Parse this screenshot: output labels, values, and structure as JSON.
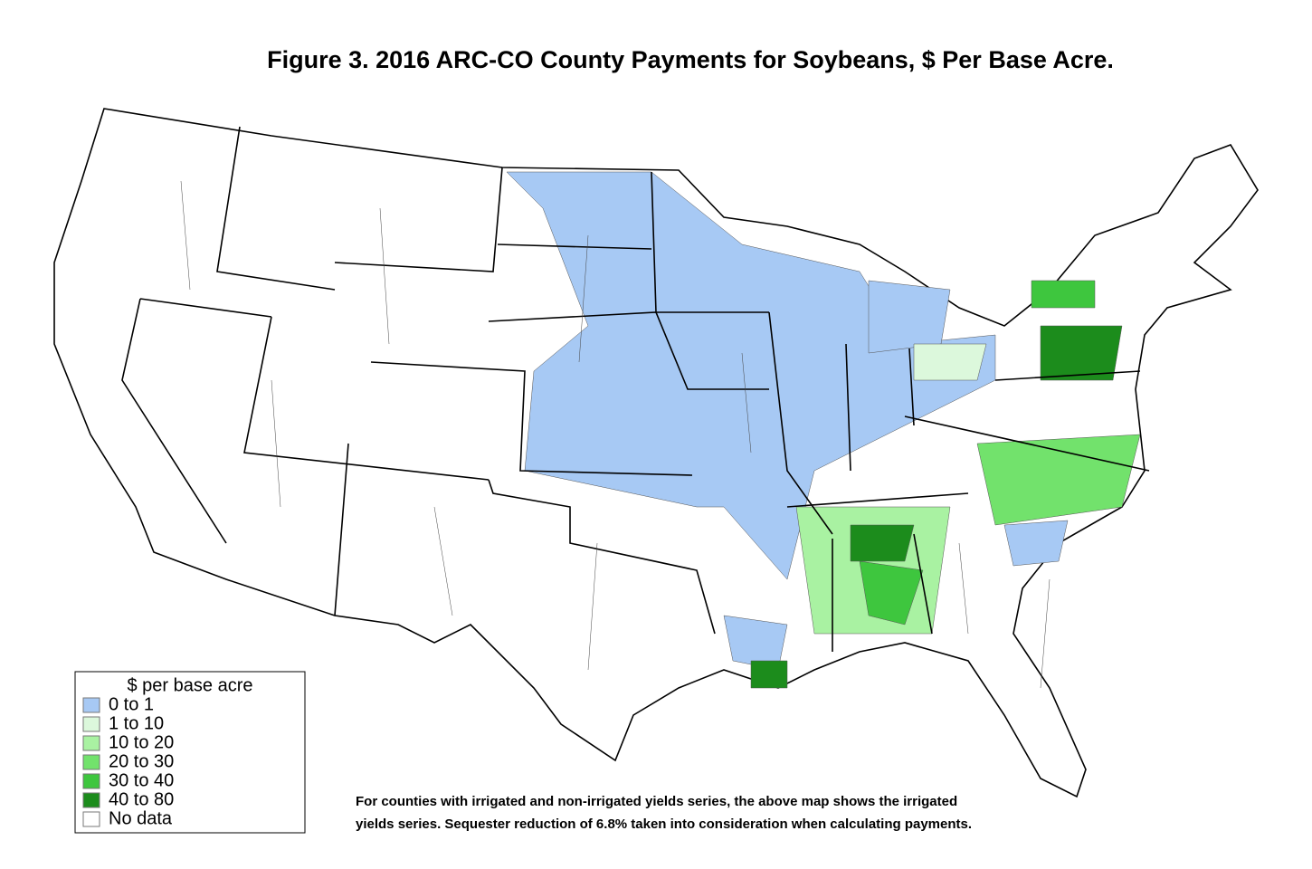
{
  "title": "Figure 3. 2016 ARC-CO County Payments for Soybeans, $ Per Base Acre.",
  "legend": {
    "title": "$ per base acre",
    "items": [
      {
        "label": "0 to 1",
        "color": "#a7c9f4"
      },
      {
        "label": "1 to 10",
        "color": "#dcf8dc"
      },
      {
        "label": "10 to 20",
        "color": "#a9f2a2"
      },
      {
        "label": "20 to 30",
        "color": "#72e26c"
      },
      {
        "label": "30 to 40",
        "color": "#3ec63e"
      },
      {
        "label": "40 to 80",
        "color": "#1c8c1c"
      },
      {
        "label": "No data",
        "color": "#ffffff"
      }
    ]
  },
  "note": [
    "For counties with irrigated and non-irrigated yields series, the above map shows the irrigated",
    "yields series.  Sequester reduction of 6.8% taken into consideration when calculating payments."
  ]
}
